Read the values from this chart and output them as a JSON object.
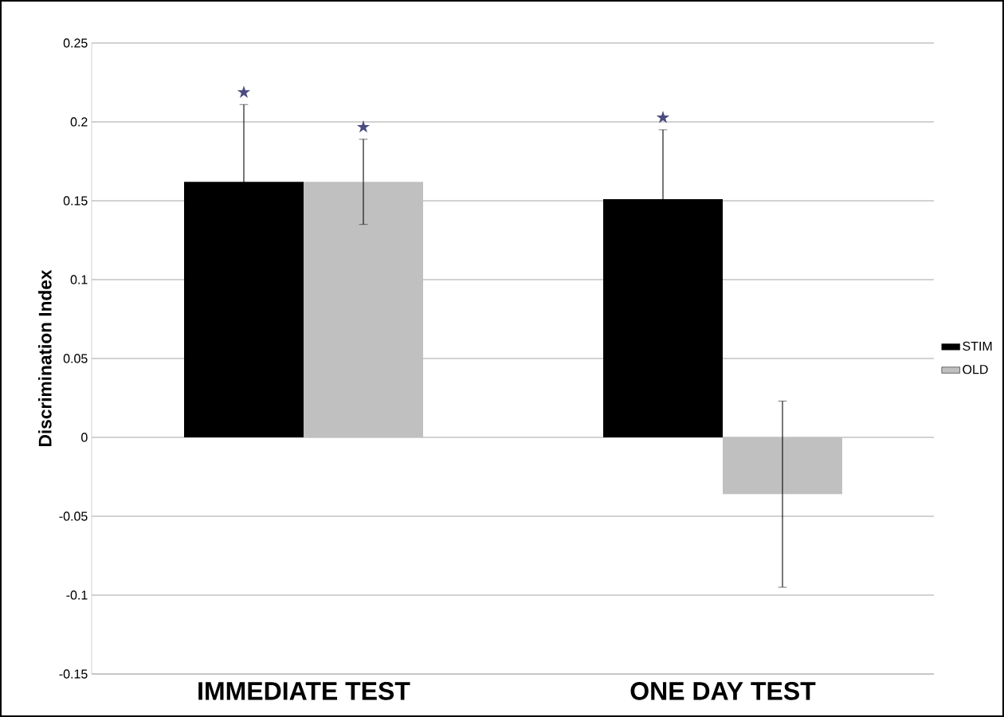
{
  "chart_data": {
    "type": "bar",
    "ylabel": "Discrimination Index",
    "categories": [
      "IMMEDIATE TEST",
      "ONE DAY TEST"
    ],
    "series": [
      {
        "name": "STIM",
        "color": "#000000",
        "values": [
          0.162,
          0.151
        ],
        "errors": [
          0.049,
          0.044
        ]
      },
      {
        "name": "OLD",
        "color": "#c0c0c0",
        "values": [
          0.162,
          -0.036
        ],
        "errors": [
          0.027,
          0.059
        ]
      }
    ],
    "ylim": [
      -0.15,
      0.25
    ],
    "yticks": [
      -0.15,
      -0.1,
      -0.05,
      0,
      0.05,
      0.1,
      0.15,
      0.2,
      0.25
    ],
    "grid": "y",
    "legend": "right",
    "annotations": [
      "★",
      "★",
      "★"
    ]
  }
}
